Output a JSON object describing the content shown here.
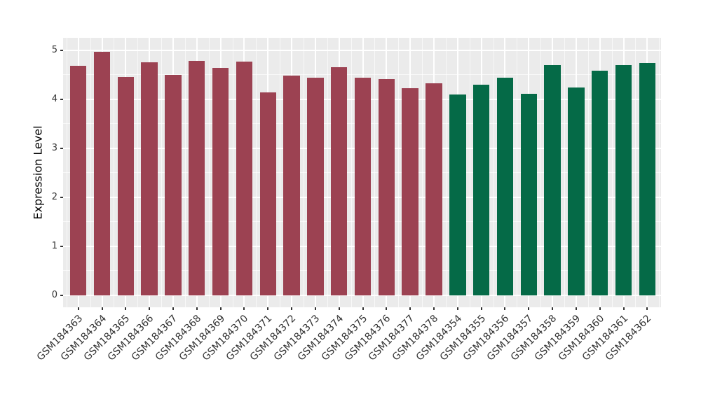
{
  "chart_data": {
    "type": "bar",
    "title": "",
    "xlabel": "",
    "ylabel": "Expression Level",
    "ylim": [
      -0.25,
      5.25
    ],
    "yticks": [
      "0",
      "1",
      "2",
      "3",
      "4",
      "5"
    ],
    "grid": "white major and minor gridlines on gray panel",
    "legend_position": "none",
    "x_label_rotation_deg": 45,
    "colors": {
      "panel_background": "#EBEBEB",
      "gridline": "#FFFFFF",
      "tick_text": "#333333",
      "axis_title_text": "#000000",
      "group_red": "#9C4252",
      "group_green": "#056A47"
    },
    "groups": [
      {
        "name": "red-group",
        "color": "#9C4252"
      },
      {
        "name": "green-group",
        "color": "#056A47"
      }
    ],
    "bars": [
      {
        "label": "GSM184363",
        "value": 4.68,
        "group": 0
      },
      {
        "label": "GSM184364",
        "value": 4.97,
        "group": 0
      },
      {
        "label": "GSM184365",
        "value": 4.46,
        "group": 0
      },
      {
        "label": "GSM184366",
        "value": 4.76,
        "group": 0
      },
      {
        "label": "GSM184367",
        "value": 4.5,
        "group": 0
      },
      {
        "label": "GSM184368",
        "value": 4.79,
        "group": 0
      },
      {
        "label": "GSM184369",
        "value": 4.65,
        "group": 0
      },
      {
        "label": "GSM184370",
        "value": 4.77,
        "group": 0
      },
      {
        "label": "GSM184371",
        "value": 4.15,
        "group": 0
      },
      {
        "label": "GSM184372",
        "value": 4.48,
        "group": 0
      },
      {
        "label": "GSM184373",
        "value": 4.44,
        "group": 0
      },
      {
        "label": "GSM184374",
        "value": 4.66,
        "group": 0
      },
      {
        "label": "GSM184375",
        "value": 4.45,
        "group": 0
      },
      {
        "label": "GSM184376",
        "value": 4.42,
        "group": 0
      },
      {
        "label": "GSM184377",
        "value": 4.23,
        "group": 0
      },
      {
        "label": "GSM184378",
        "value": 4.33,
        "group": 0
      },
      {
        "label": "GSM184354",
        "value": 4.1,
        "group": 1
      },
      {
        "label": "GSM184355",
        "value": 4.3,
        "group": 1
      },
      {
        "label": "GSM184356",
        "value": 4.44,
        "group": 1
      },
      {
        "label": "GSM184357",
        "value": 4.11,
        "group": 1
      },
      {
        "label": "GSM184358",
        "value": 4.7,
        "group": 1
      },
      {
        "label": "GSM184359",
        "value": 4.24,
        "group": 1
      },
      {
        "label": "GSM184360",
        "value": 4.59,
        "group": 1
      },
      {
        "label": "GSM184361",
        "value": 4.7,
        "group": 1
      },
      {
        "label": "GSM184362",
        "value": 4.74,
        "group": 1
      }
    ]
  }
}
